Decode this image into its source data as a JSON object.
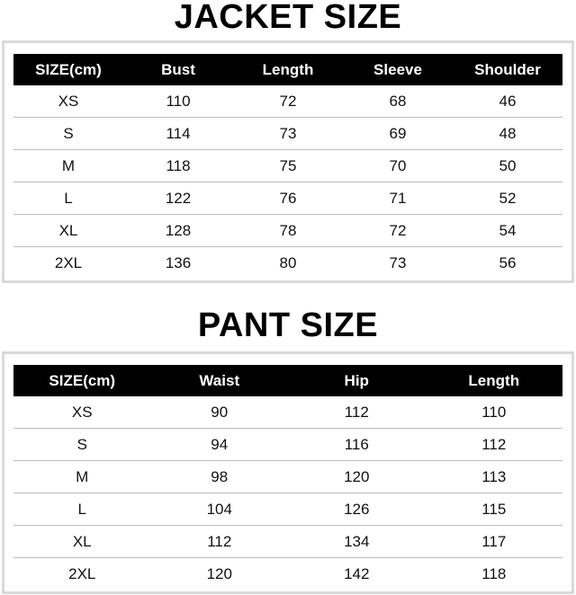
{
  "jacket": {
    "title": "JACKET SIZE",
    "headers": [
      "SIZE(cm)",
      "Bust",
      "Length",
      "Sleeve",
      "Shoulder"
    ],
    "rows": [
      [
        "XS",
        "110",
        "72",
        "68",
        "46"
      ],
      [
        "S",
        "114",
        "73",
        "69",
        "48"
      ],
      [
        "M",
        "118",
        "75",
        "70",
        "50"
      ],
      [
        "L",
        "122",
        "76",
        "71",
        "52"
      ],
      [
        "XL",
        "128",
        "78",
        "72",
        "54"
      ],
      [
        "2XL",
        "136",
        "80",
        "73",
        "56"
      ]
    ]
  },
  "pant": {
    "title": "PANT SIZE",
    "headers": [
      "SIZE(cm)",
      "Waist",
      "Hip",
      "Length"
    ],
    "rows": [
      [
        "XS",
        "90",
        "112",
        "110"
      ],
      [
        "S",
        "94",
        "116",
        "112"
      ],
      [
        "M",
        "98",
        "120",
        "113"
      ],
      [
        "L",
        "104",
        "126",
        "115"
      ],
      [
        "XL",
        "112",
        "134",
        "117"
      ],
      [
        "2XL",
        "120",
        "142",
        "118"
      ]
    ]
  }
}
